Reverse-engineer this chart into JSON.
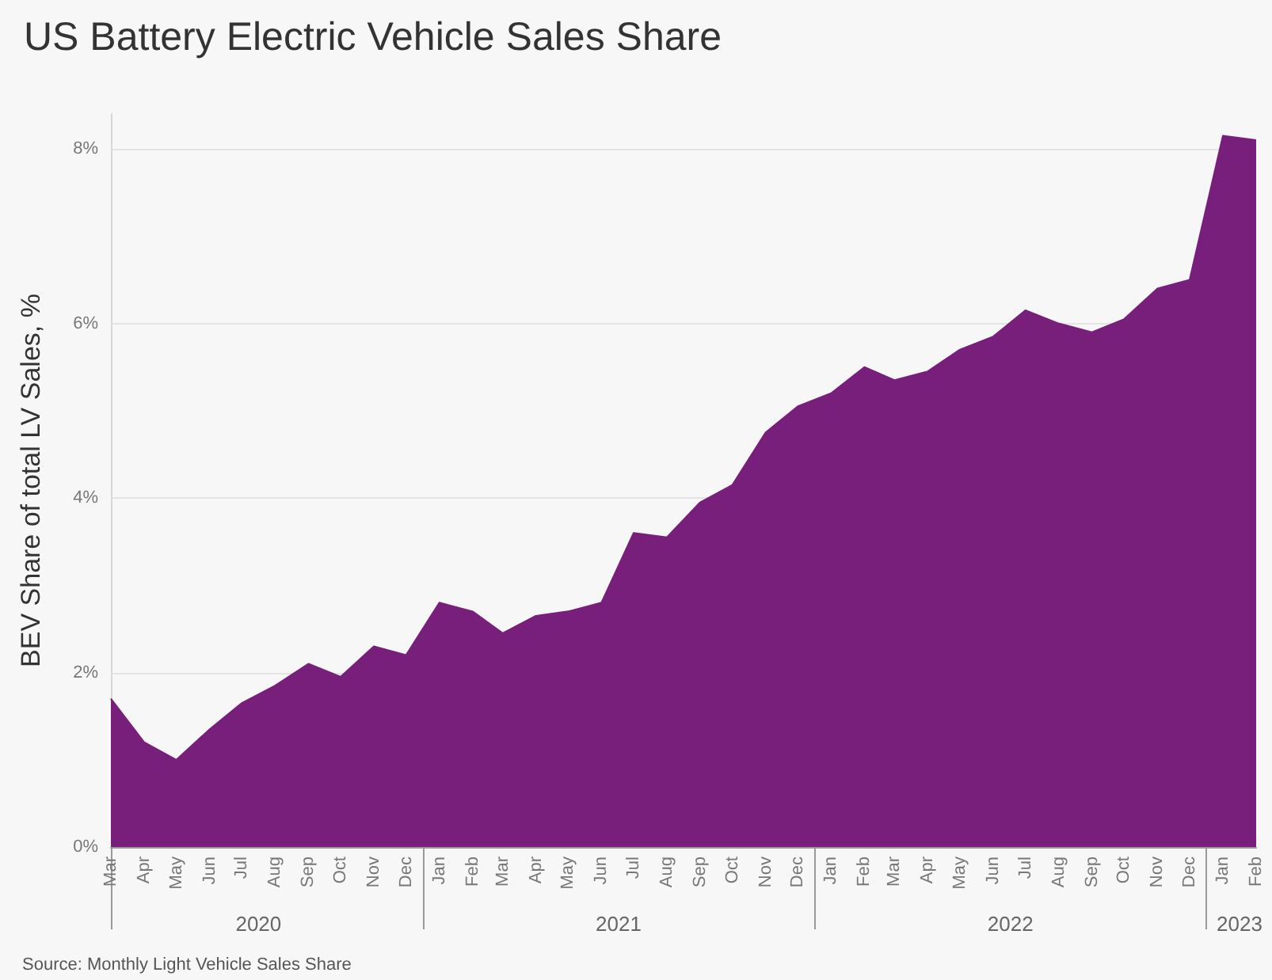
{
  "chart_data": {
    "type": "area",
    "title": "US Battery Electric Vehicle Sales Share",
    "ylabel": "BEV Share of total LV Sales, %",
    "x": [
      "2020-03",
      "2020-04",
      "2020-05",
      "2020-06",
      "2020-07",
      "2020-08",
      "2020-09",
      "2020-10",
      "2020-11",
      "2020-12",
      "2021-01",
      "2021-02",
      "2021-03",
      "2021-04",
      "2021-05",
      "2021-06",
      "2021-07",
      "2021-08",
      "2021-09",
      "2021-10",
      "2021-11",
      "2021-12",
      "2022-01",
      "2022-02",
      "2022-03",
      "2022-04",
      "2022-05",
      "2022-06",
      "2022-07",
      "2022-08",
      "2022-09",
      "2022-10",
      "2022-11",
      "2022-12",
      "2023-01",
      "2023-02"
    ],
    "series": [
      {
        "color": "#781f7c",
        "values": [
          1.7,
          1.2,
          1.0,
          1.35,
          1.65,
          1.85,
          2.1,
          1.95,
          2.3,
          2.2,
          2.8,
          2.7,
          2.45,
          2.65,
          2.7,
          2.8,
          3.6,
          3.55,
          3.95,
          4.15,
          4.75,
          5.05,
          5.2,
          5.5,
          5.35,
          5.45,
          5.7,
          5.85,
          6.15,
          6.0,
          5.9,
          6.05,
          6.4,
          6.5,
          8.15,
          8.1
        ]
      }
    ],
    "xlim": [
      "2020-03",
      "2023-02"
    ],
    "xticks": [
      {
        "value": "2020-03",
        "label": "Mar"
      },
      {
        "value": "2020-04",
        "label": "Apr"
      },
      {
        "value": "2020-05",
        "label": "May"
      },
      {
        "value": "2020-06",
        "label": "Jun"
      },
      {
        "value": "2020-07",
        "label": "Jul"
      },
      {
        "value": "2020-08",
        "label": "Aug"
      },
      {
        "value": "2020-09",
        "label": "Sep"
      },
      {
        "value": "2020-10",
        "label": "Oct"
      },
      {
        "value": "2020-11",
        "label": "Nov"
      },
      {
        "value": "2020-12",
        "label": "Dec"
      },
      {
        "value": "2021-01",
        "label": "Jan"
      },
      {
        "value": "2021-02",
        "label": "Feb"
      },
      {
        "value": "2021-03",
        "label": "Mar"
      },
      {
        "value": "2021-04",
        "label": "Apr"
      },
      {
        "value": "2021-05",
        "label": "May"
      },
      {
        "value": "2021-06",
        "label": "Jun"
      },
      {
        "value": "2021-07",
        "label": "Jul"
      },
      {
        "value": "2021-08",
        "label": "Aug"
      },
      {
        "value": "2021-09",
        "label": "Sep"
      },
      {
        "value": "2021-10",
        "label": "Oct"
      },
      {
        "value": "2021-11",
        "label": "Nov"
      },
      {
        "value": "2021-12",
        "label": "Dec"
      },
      {
        "value": "2022-01",
        "label": "Jan"
      },
      {
        "value": "2022-02",
        "label": "Feb"
      },
      {
        "value": "2022-03",
        "label": "Mar"
      },
      {
        "value": "2022-04",
        "label": "Apr"
      },
      {
        "value": "2022-05",
        "label": "May"
      },
      {
        "value": "2022-06",
        "label": "Jun"
      },
      {
        "value": "2022-07",
        "label": "Jul"
      },
      {
        "value": "2022-08",
        "label": "Aug"
      },
      {
        "value": "2022-09",
        "label": "Sep"
      },
      {
        "value": "2022-10",
        "label": "Oct"
      },
      {
        "value": "2022-11",
        "label": "Nov"
      },
      {
        "value": "2022-12",
        "label": "Dec"
      },
      {
        "value": "2023-01",
        "label": "Jan"
      },
      {
        "value": "2023-02",
        "label": "Feb"
      }
    ],
    "ylim": [
      0,
      8.4
    ],
    "yticks": [
      {
        "value": 0,
        "label": "0%"
      },
      {
        "value": 2,
        "label": "2%"
      },
      {
        "value": 4,
        "label": "4%"
      },
      {
        "value": 6,
        "label": "6%"
      },
      {
        "value": 8,
        "label": "8%"
      }
    ],
    "grid": "y",
    "annotations": [
      "2020",
      "2021",
      "2022",
      "2023",
      "Source: Monthly Light Vehicle Sales Share"
    ]
  }
}
